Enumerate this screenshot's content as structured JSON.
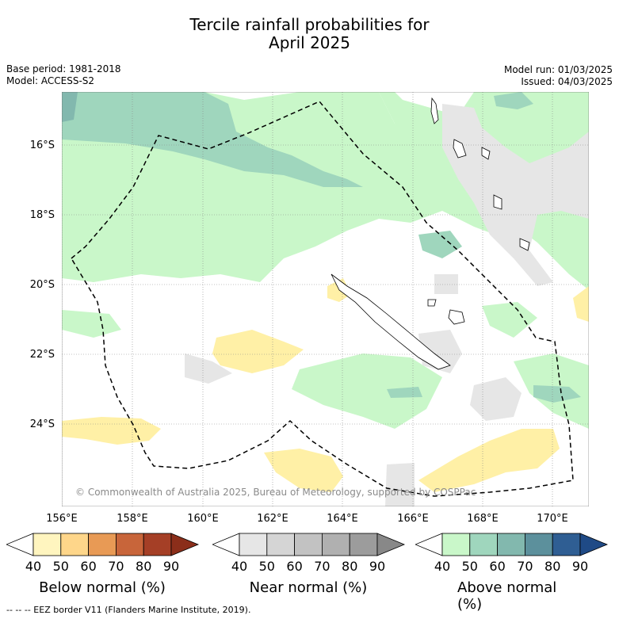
{
  "title_line1": "Tercile rainfall probabilities for",
  "title_line2": "April 2025",
  "base_period": "Base period: 1981-2018",
  "model": "Model: ACCESS-S2",
  "model_run": "Model run: 01/03/2025",
  "issued": "Issued: 04/03/2025",
  "lat_labels": [
    "16°S",
    "18°S",
    "20°S",
    "22°S",
    "24°S"
  ],
  "lon_labels": [
    "156°E",
    "158°E",
    "160°E",
    "162°E",
    "164°E",
    "166°E",
    "168°E",
    "170°E"
  ],
  "copyright": "© Commonwealth of Australia 2025, Bureau of Meteorology, supported by COSPPac",
  "footer": "-- -- -- EEZ border V11 (Flanders Marine Institute, 2019).",
  "colorbars": [
    {
      "label": "Below normal (%)",
      "ticks": [
        "40",
        "50",
        "60",
        "70",
        "80",
        "90"
      ],
      "colors": [
        "#fff5bf",
        "#fed68a",
        "#e89a55",
        "#c8653a",
        "#a53f26",
        "#8b2e1a"
      ]
    },
    {
      "label": "Near normal (%)",
      "ticks": [
        "40",
        "50",
        "60",
        "70",
        "80",
        "90"
      ],
      "colors": [
        "#e6e6e6",
        "#d5d5d5",
        "#c2c2c2",
        "#b0b0b0",
        "#9c9c9c",
        "#888888"
      ]
    },
    {
      "label": "Above normal (%)",
      "ticks": [
        "40",
        "50",
        "60",
        "70",
        "80",
        "90"
      ],
      "colors": [
        "#c9f7c9",
        "#9fd6bd",
        "#82b8ae",
        "#5c909c",
        "#2f5e93",
        "#1f4a86"
      ]
    }
  ]
}
